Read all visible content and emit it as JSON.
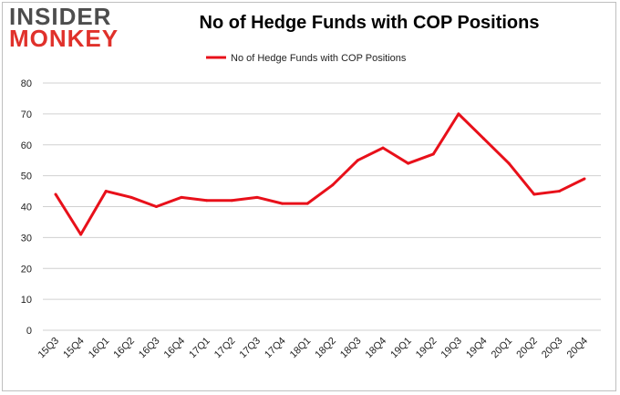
{
  "brand": {
    "line1": "INSIDER",
    "line2": "MONKEY"
  },
  "colors": {
    "series": "#e8101a",
    "grid": "#d0d0d0",
    "brand_red": "#e0312b",
    "brand_gray": "#4d4d4d"
  },
  "chart_data": {
    "type": "line",
    "title": "No of Hedge Funds with COP Positions",
    "xlabel": "",
    "ylabel": "",
    "ylim": [
      0,
      80
    ],
    "yticks": [
      0,
      10,
      20,
      30,
      40,
      50,
      60,
      70,
      80
    ],
    "grid": true,
    "legend_position": "top-center",
    "categories": [
      "15Q3",
      "15Q4",
      "16Q1",
      "16Q2",
      "16Q3",
      "16Q4",
      "17Q1",
      "17Q2",
      "17Q3",
      "17Q4",
      "18Q1",
      "18Q2",
      "18Q3",
      "18Q4",
      "19Q1",
      "19Q2",
      "19Q3",
      "19Q4",
      "20Q1",
      "20Q2",
      "20Q3",
      "20Q4"
    ],
    "series": [
      {
        "name": "No of Hedge Funds with COP Positions",
        "values": [
          44,
          31,
          45,
          43,
          40,
          43,
          42,
          42,
          43,
          41,
          41,
          47,
          55,
          59,
          54,
          57,
          70,
          62,
          54,
          44,
          45,
          49
        ]
      }
    ]
  }
}
